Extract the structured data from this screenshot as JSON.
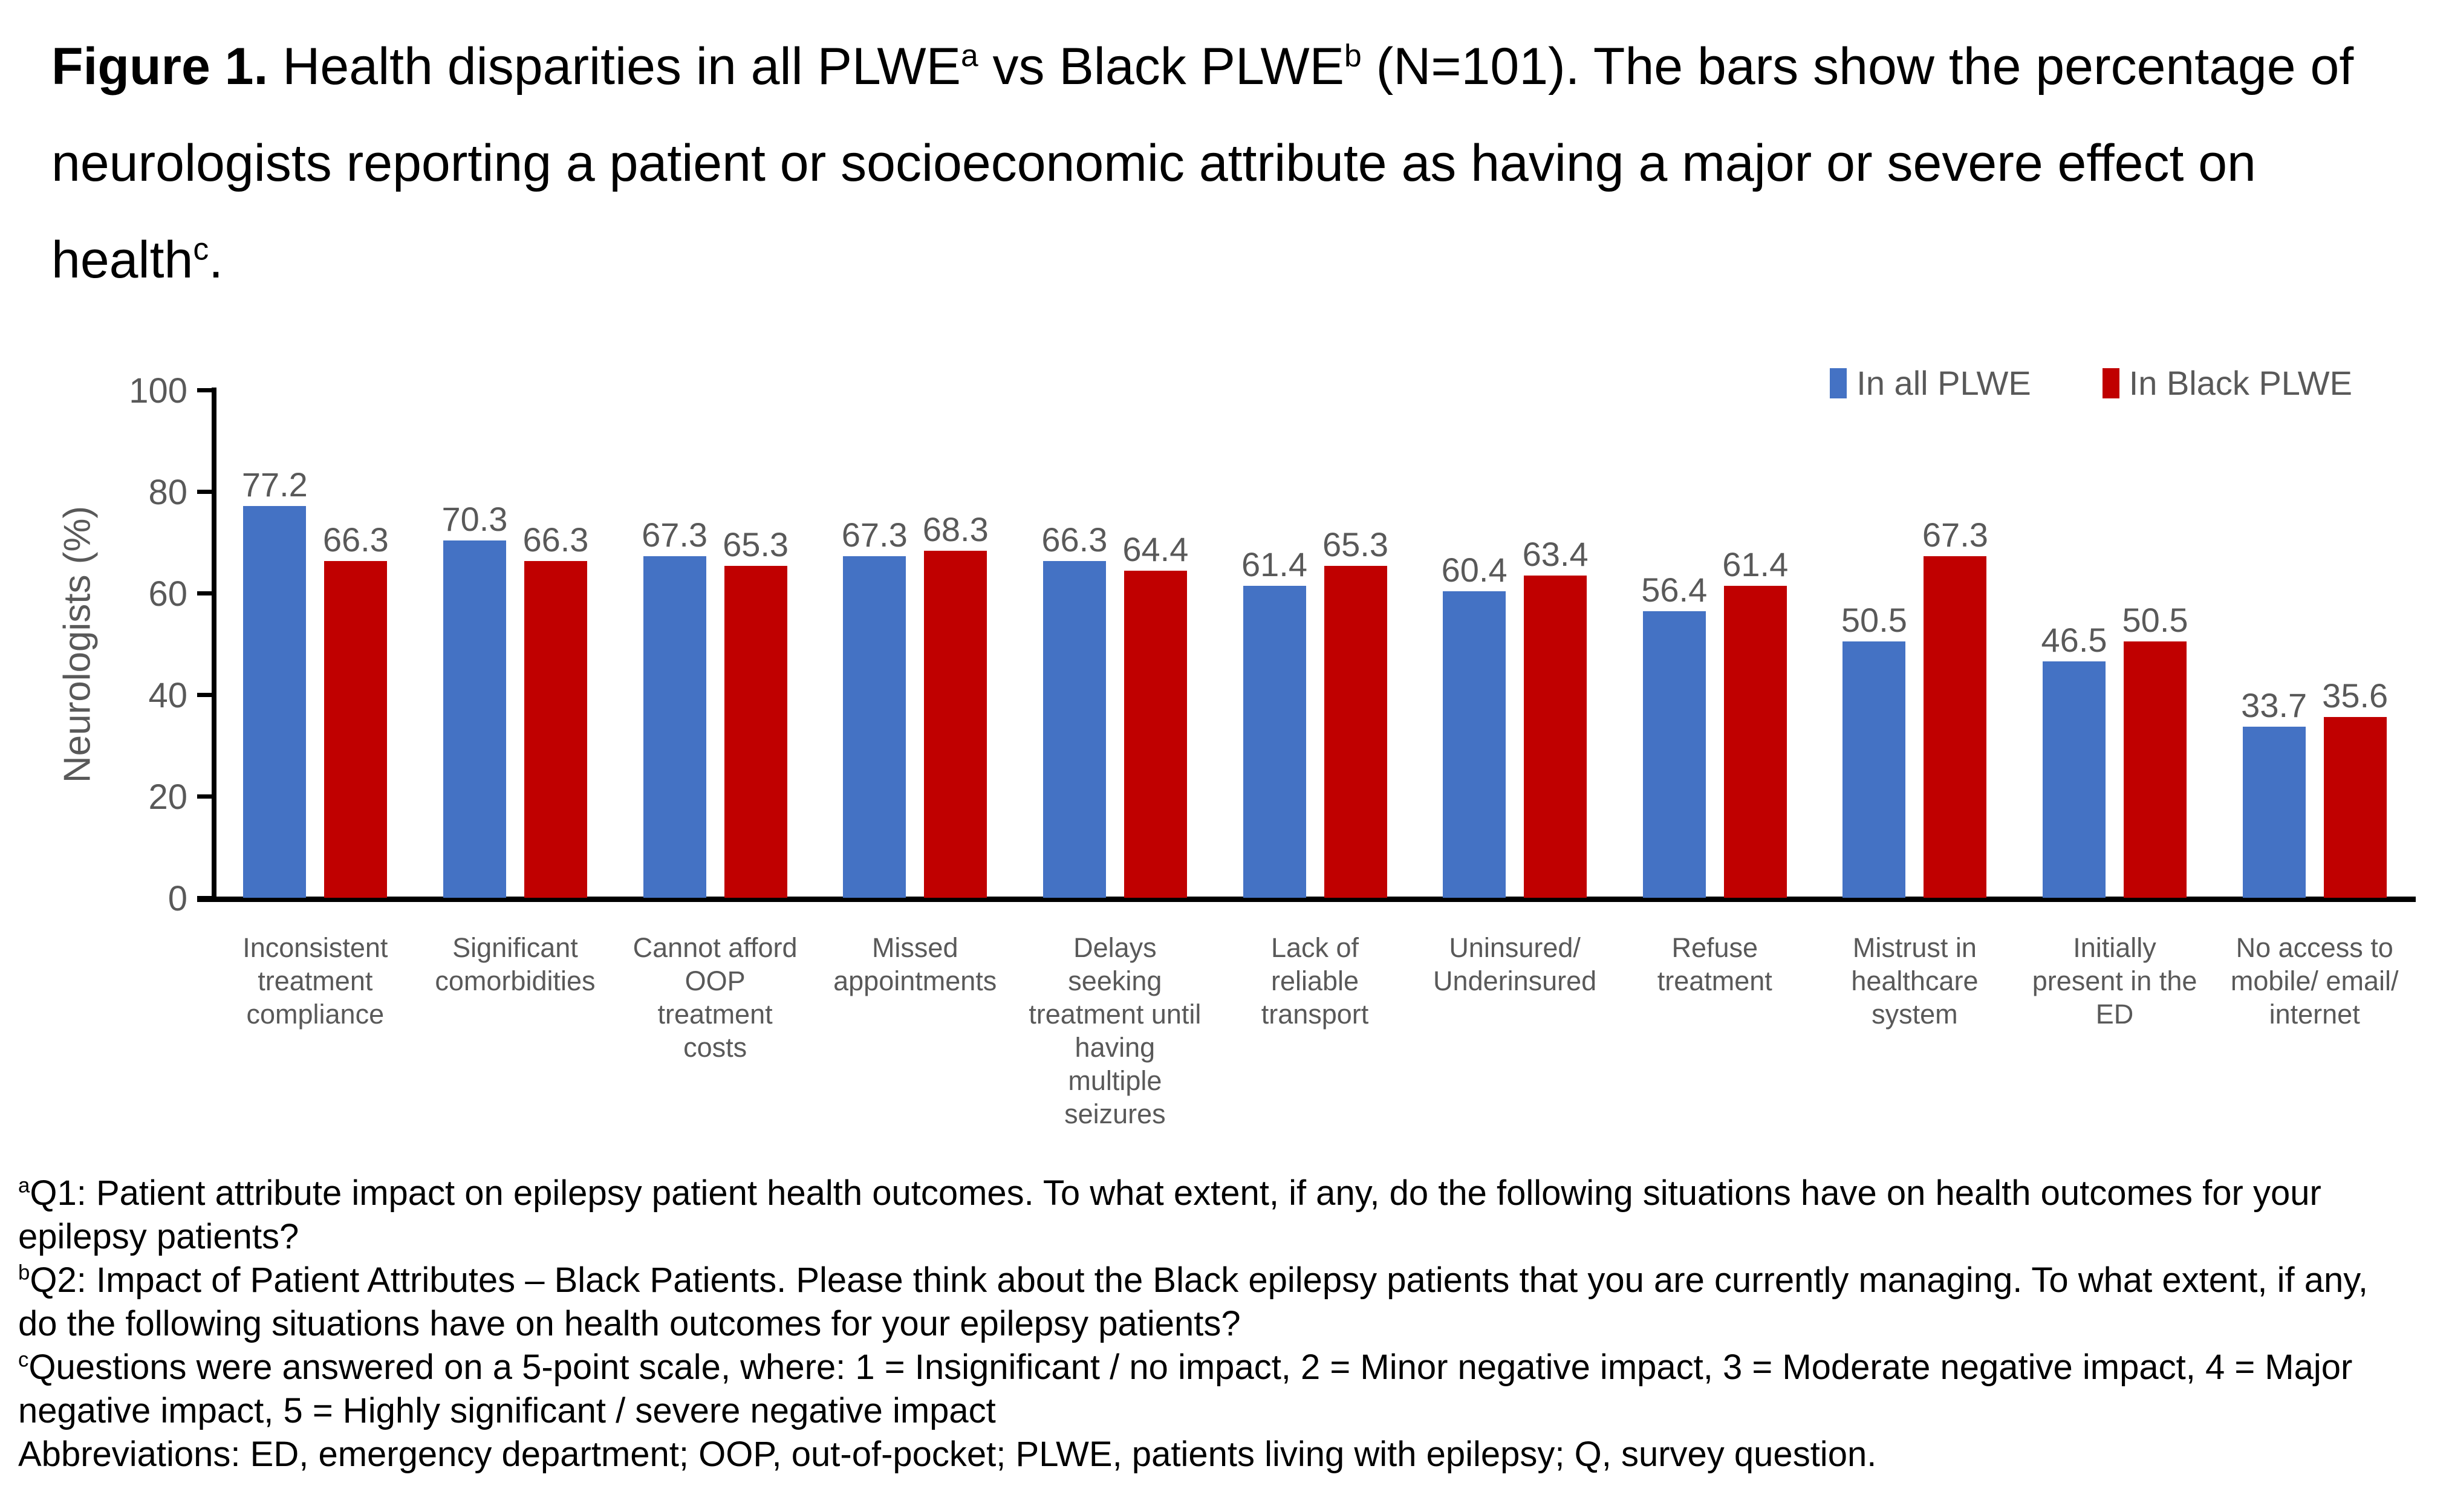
{
  "title": {
    "lead": "Figure 1.",
    "part1": " Health disparities in all PLWE",
    "sup1": "a",
    "part2": " vs Black PLWE",
    "sup2": "b",
    "part3": " (N=101). The bars show the percentage of neurologists reporting a patient or socioeconomic attribute as having a major or severe effect on health",
    "sup3": "c",
    "part4": "."
  },
  "chart_data": {
    "type": "bar",
    "title": "",
    "categories": [
      "Inconsistent\ntreatment\ncompliance",
      "Significant\ncomorbidities",
      "Cannot afford\nOOP\ntreatment\ncosts",
      "Missed\nappointments",
      "Delays\nseeking\ntreatment until\nhaving\nmultiple\nseizures",
      "Lack of\nreliable\ntransport",
      "Uninsured/\nUnderinsured",
      "Refuse\ntreatment",
      "Mistrust in\nhealthcare\nsystem",
      "Initially\npresent in the\nED",
      "No access to\nmobile/ email/\ninternet"
    ],
    "series": [
      {
        "name": "In all PLWE",
        "color": "#4472C4",
        "values": [
          77.2,
          70.3,
          67.3,
          67.3,
          66.3,
          61.4,
          60.4,
          56.4,
          50.5,
          46.5,
          33.7
        ]
      },
      {
        "name": "In Black PLWE",
        "color": "#C00000",
        "values": [
          66.3,
          66.3,
          65.3,
          68.3,
          64.4,
          65.3,
          63.4,
          61.4,
          67.3,
          50.5,
          35.6
        ]
      }
    ],
    "ylabel": "Neurologists (%)",
    "xlabel": "",
    "ylim": [
      0,
      100
    ],
    "y_ticks": [
      0,
      20,
      40,
      60,
      80,
      100
    ],
    "grid": false,
    "data_labels": true,
    "legend_position": "top-right"
  },
  "footnotes": [
    {
      "sup": "a",
      "text": "Q1: Patient attribute impact on epilepsy patient health outcomes. To what extent, if any, do the following situations have on health outcomes for your epilepsy patients?"
    },
    {
      "sup": "b",
      "text": "Q2: Impact of Patient Attributes – Black Patients. Please think about the Black epilepsy patients that you are currently managing. To what extent, if any, do the following situations have on health outcomes for your epilepsy patients?"
    },
    {
      "sup": "c",
      "text": "Questions were answered on a 5-point scale, where: 1 = Insignificant / no impact, 2 = Minor negative impact, 3 = Moderate negative impact, 4 = Major negative impact, 5 = Highly significant / severe negative impact"
    },
    {
      "sup": "",
      "text": "Abbreviations: ED, emergency department; OOP, out-of-pocket; PLWE, patients living with epilepsy; Q, survey question."
    }
  ]
}
